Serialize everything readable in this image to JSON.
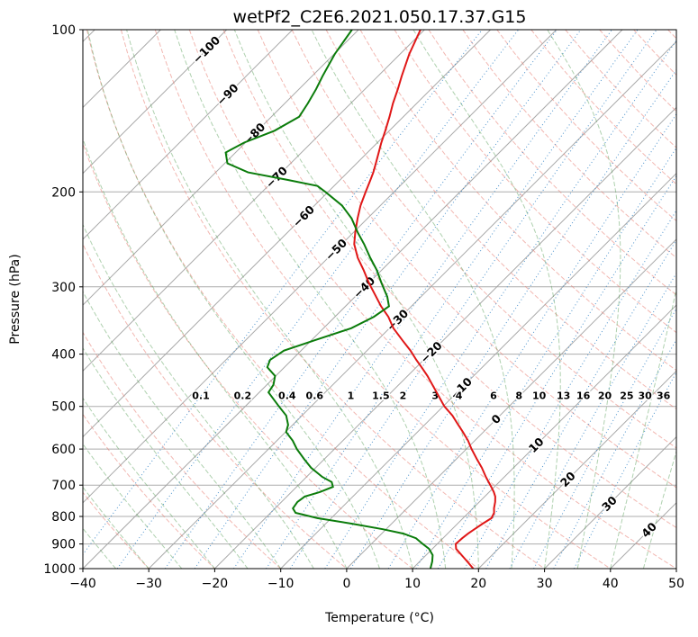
{
  "chart_data": {
    "type": "skewt_log_p",
    "title": "wetPf2_C2E6.2021.050.17.37.G15",
    "xlabel": "Temperature (°C)",
    "ylabel": "Pressure (hPa)",
    "temp_range": [
      -40,
      50
    ],
    "pressure_range": [
      100,
      1000
    ],
    "x_ticks": [
      -40,
      -30,
      -20,
      -10,
      0,
      10,
      20,
      30,
      40,
      50
    ],
    "pressure_ticks": [
      100,
      200,
      300,
      400,
      500,
      600,
      700,
      800,
      900,
      1000
    ],
    "skew_deg": 45,
    "grid": true,
    "legend": "none",
    "isotherms": {
      "start": -120,
      "end": 50,
      "step": 10
    },
    "dry_adiabats": {
      "start": -40,
      "end": 200,
      "step": 10
    },
    "moist_adiabats": {
      "start": -40,
      "end": 55,
      "step": 5
    },
    "mixing_ratios": [
      0.1,
      0.2,
      0.4,
      0.6,
      1,
      1.5,
      2,
      3,
      4,
      6,
      8,
      10,
      13,
      16,
      20,
      25,
      30,
      36
    ],
    "mixing_ratio_label_pressure": 478,
    "isotherm_labels": [
      {
        "t": -100,
        "p": 109
      },
      {
        "t": -90,
        "p": 132
      },
      {
        "t": -80,
        "p": 156
      },
      {
        "t": -70,
        "p": 188
      },
      {
        "t": -60,
        "p": 222
      },
      {
        "t": -50,
        "p": 256
      },
      {
        "t": -40,
        "p": 301
      },
      {
        "t": -30,
        "p": 346
      },
      {
        "t": -20,
        "p": 397
      },
      {
        "t": -10,
        "p": 463
      },
      {
        "t": 0,
        "p": 528
      },
      {
        "t": 10,
        "p": 590
      },
      {
        "t": 20,
        "p": 683
      },
      {
        "t": 30,
        "p": 758
      },
      {
        "t": 40,
        "p": 848
      }
    ],
    "colors": {
      "temperature": "#e01717",
      "dewpoint": "#0b7c0b",
      "isotherm": "#a3a3a3",
      "grid": "#a3a3a3",
      "dry_adiabat": "#e87d72",
      "moist_adiabat": "#4e9a4e",
      "mixing_ratio": "#3a87c8",
      "label_negative": "#1f77b4",
      "label_zero": "#7f7f7f",
      "label_positive": "#d62728",
      "border": "#000000"
    },
    "series": [
      {
        "name": "temperature",
        "points": [
          [
            100,
            -70.6
          ],
          [
            111,
            -68.6
          ],
          [
            122,
            -66.4
          ],
          [
            129,
            -65.0
          ],
          [
            137,
            -63.6
          ],
          [
            145,
            -62.1
          ],
          [
            154,
            -60.6
          ],
          [
            162,
            -59.4
          ],
          [
            169,
            -58.3
          ],
          [
            177,
            -57.1
          ],
          [
            184,
            -56.1
          ],
          [
            190,
            -55.4
          ],
          [
            200,
            -54.3
          ],
          [
            212,
            -53.0
          ],
          [
            224,
            -51.5
          ],
          [
            238,
            -49.7
          ],
          [
            250,
            -48.1
          ],
          [
            265,
            -45.5
          ],
          [
            279,
            -42.8
          ],
          [
            295,
            -40.0
          ],
          [
            313,
            -36.8
          ],
          [
            326,
            -34.6
          ],
          [
            341,
            -31.9
          ],
          [
            358,
            -29.4
          ],
          [
            377,
            -26.2
          ],
          [
            394,
            -23.4
          ],
          [
            410,
            -21.1
          ],
          [
            423,
            -19.2
          ],
          [
            439,
            -17.0
          ],
          [
            456,
            -14.9
          ],
          [
            471,
            -13.1
          ],
          [
            500,
            -9.8
          ],
          [
            520,
            -7.2
          ],
          [
            541,
            -4.9
          ],
          [
            558,
            -3.1
          ],
          [
            579,
            -1.0
          ],
          [
            600,
            0.8
          ],
          [
            626,
            3.1
          ],
          [
            650,
            5.2
          ],
          [
            676,
            7.2
          ],
          [
            705,
            9.5
          ],
          [
            721,
            10.7
          ],
          [
            735,
            11.6
          ],
          [
            752,
            12.4
          ],
          [
            773,
            13.2
          ],
          [
            788,
            13.9
          ],
          [
            806,
            14.3
          ],
          [
            825,
            13.8
          ],
          [
            845,
            13.4
          ],
          [
            861,
            13.1
          ],
          [
            878,
            12.9
          ],
          [
            900,
            12.8
          ],
          [
            919,
            13.6
          ],
          [
            944,
            15.4
          ],
          [
            970,
            17.2
          ],
          [
            1000,
            19.2
          ]
        ]
      },
      {
        "name": "dewpoint",
        "points": [
          [
            100,
            -81.0
          ],
          [
            111,
            -79.9
          ],
          [
            122,
            -78.4
          ],
          [
            129,
            -77.4
          ],
          [
            137,
            -76.5
          ],
          [
            145,
            -75.8
          ],
          [
            154,
            -77.4
          ],
          [
            162,
            -80.2
          ],
          [
            169,
            -81.5
          ],
          [
            177,
            -79.6
          ],
          [
            184,
            -75.1
          ],
          [
            190,
            -67.9
          ],
          [
            195,
            -62.5
          ],
          [
            200,
            -60.4
          ],
          [
            212,
            -55.8
          ],
          [
            224,
            -52.4
          ],
          [
            238,
            -49.3
          ],
          [
            250,
            -46.6
          ],
          [
            265,
            -43.6
          ],
          [
            279,
            -40.8
          ],
          [
            295,
            -38.1
          ],
          [
            313,
            -35.1
          ],
          [
            326,
            -33.4
          ],
          [
            341,
            -34.1
          ],
          [
            358,
            -35.8
          ],
          [
            377,
            -39.5
          ],
          [
            394,
            -42.6
          ],
          [
            410,
            -43.3
          ],
          [
            423,
            -42.6
          ],
          [
            439,
            -40.1
          ],
          [
            456,
            -39.0
          ],
          [
            471,
            -38.6
          ],
          [
            500,
            -34.9
          ],
          [
            520,
            -32.4
          ],
          [
            541,
            -30.7
          ],
          [
            558,
            -29.9
          ],
          [
            579,
            -27.6
          ],
          [
            600,
            -25.7
          ],
          [
            626,
            -23.1
          ],
          [
            650,
            -20.7
          ],
          [
            676,
            -17.6
          ],
          [
            691,
            -15.4
          ],
          [
            705,
            -14.5
          ],
          [
            721,
            -15.7
          ],
          [
            735,
            -17.3
          ],
          [
            752,
            -17.6
          ],
          [
            773,
            -17.3
          ],
          [
            788,
            -16.2
          ],
          [
            806,
            -12.1
          ],
          [
            825,
            -6.1
          ],
          [
            845,
            -0.5
          ],
          [
            861,
            3.3
          ],
          [
            878,
            5.9
          ],
          [
            900,
            7.8
          ],
          [
            919,
            9.5
          ],
          [
            944,
            11.0
          ],
          [
            970,
            11.9
          ],
          [
            1000,
            12.7
          ]
        ]
      }
    ]
  }
}
